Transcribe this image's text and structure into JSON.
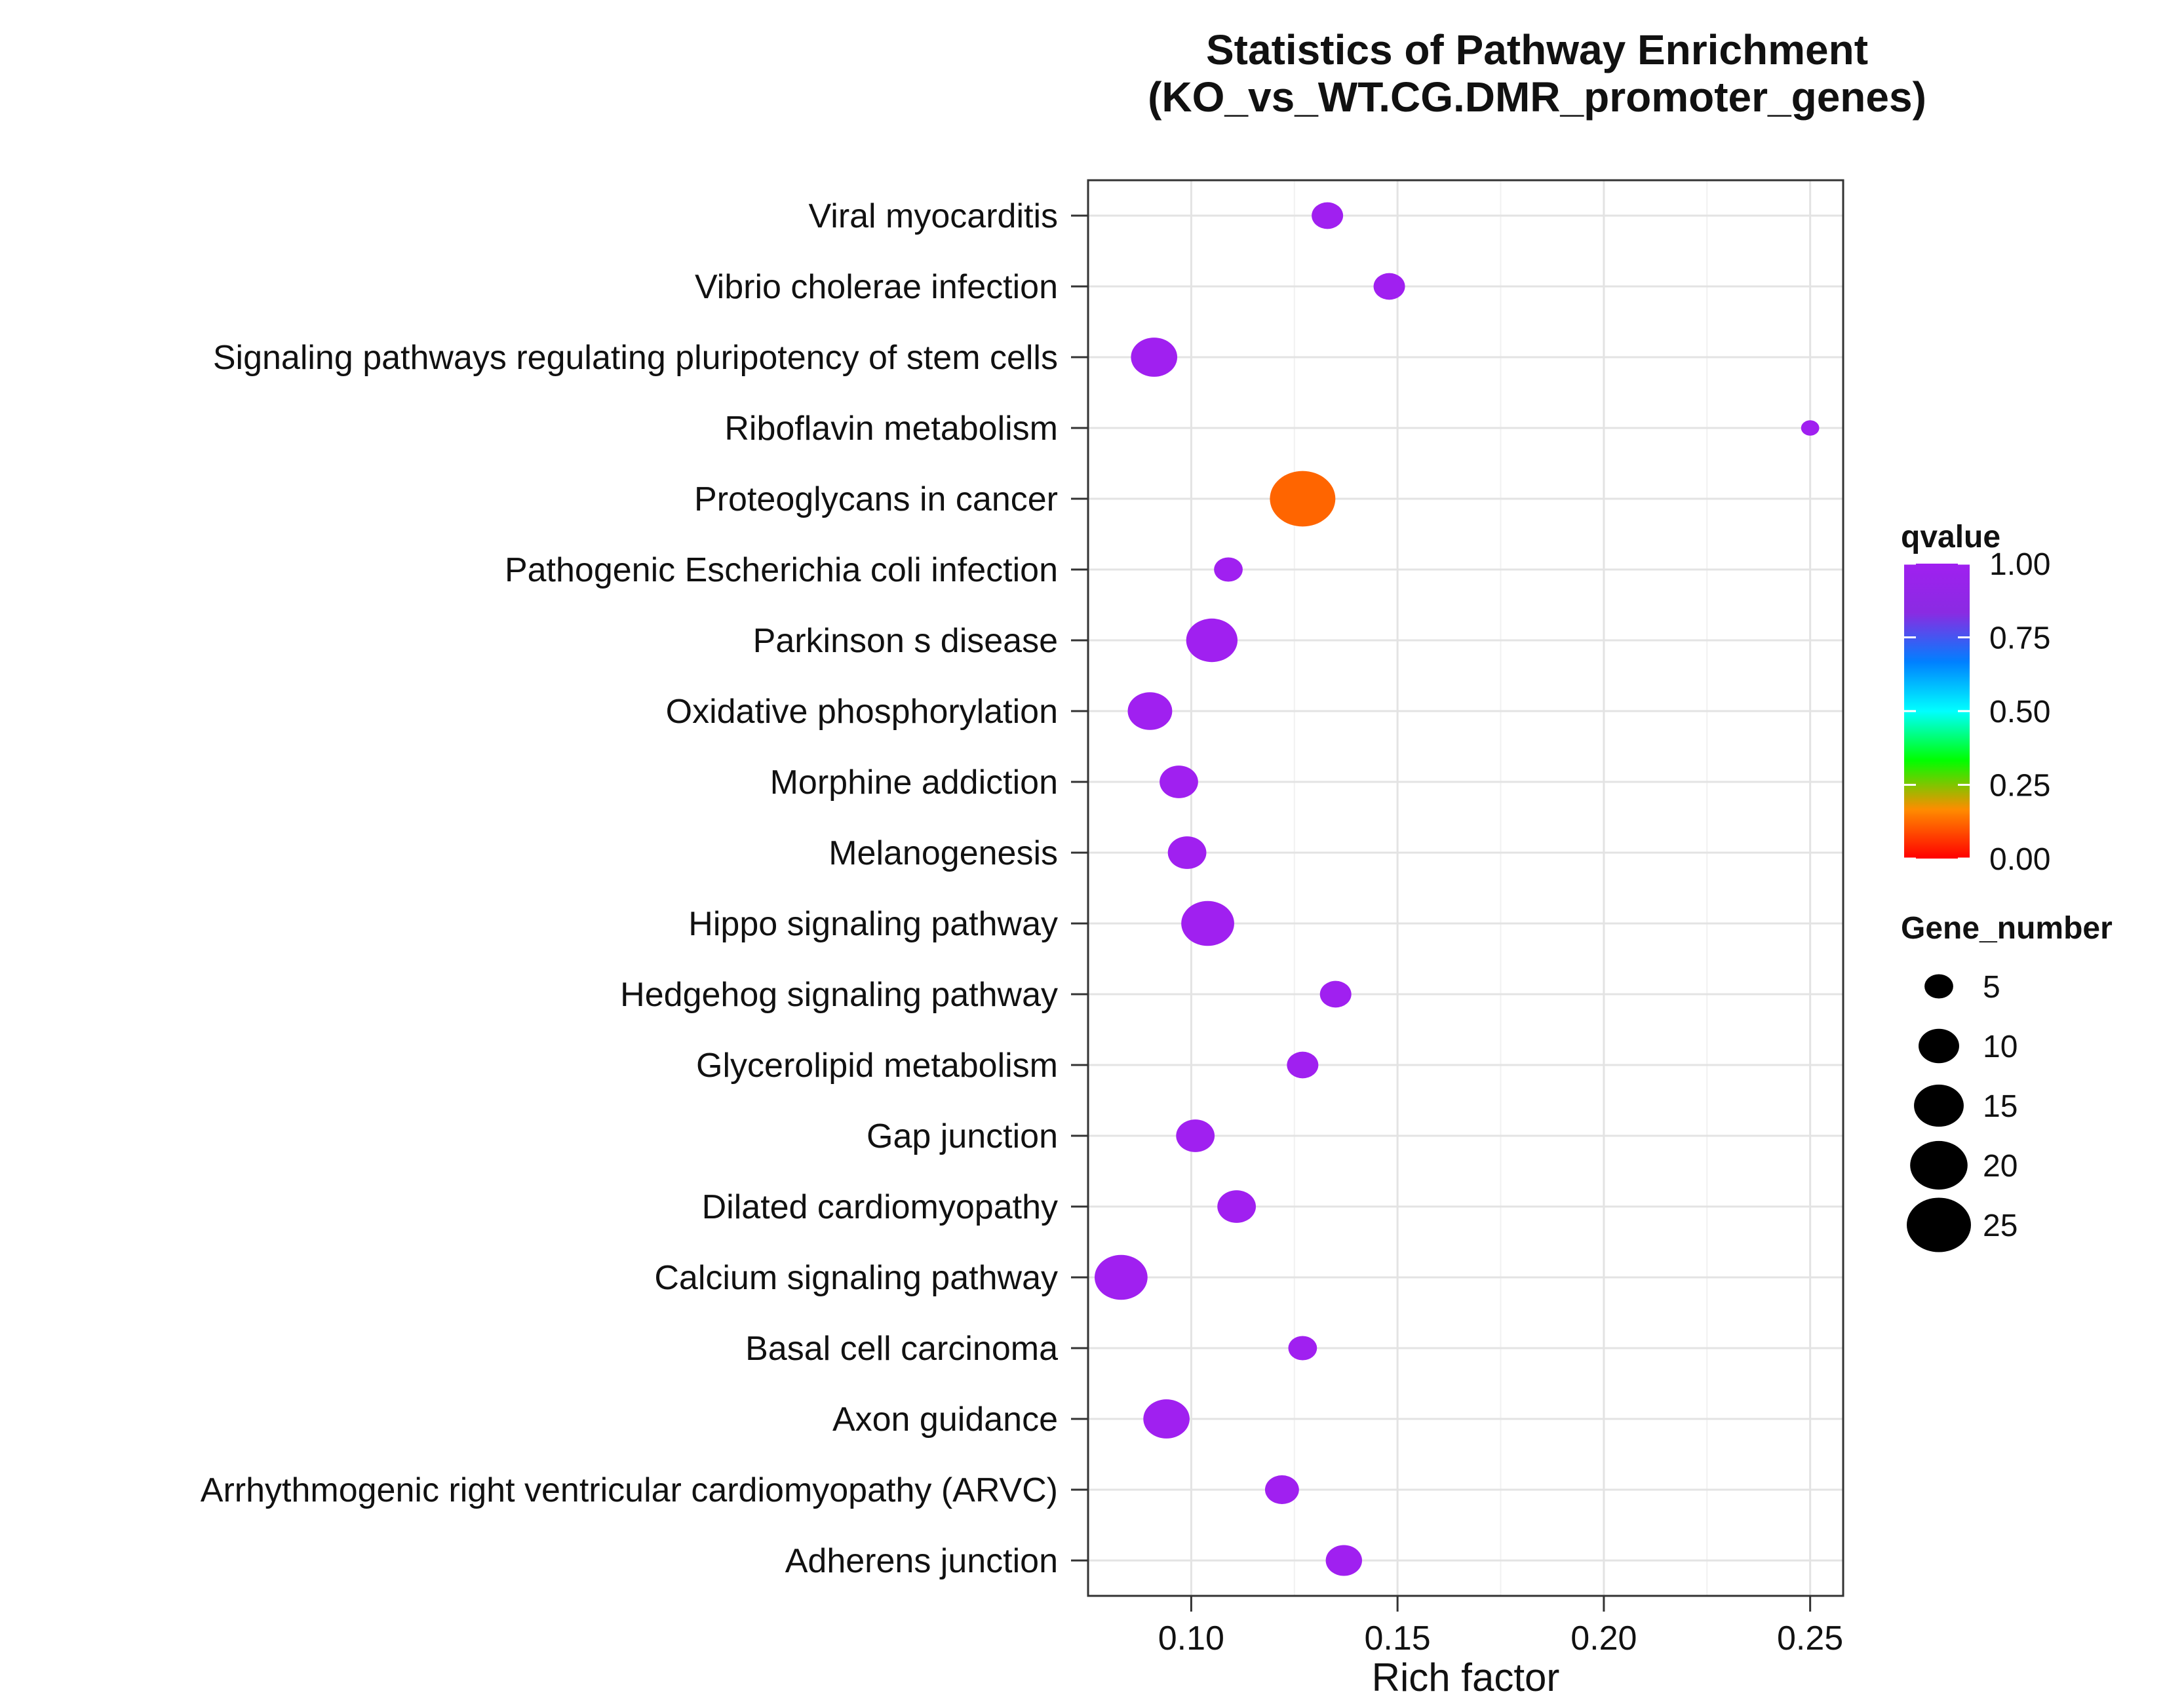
{
  "chart_data": {
    "type": "scatter",
    "title": "Statistics of Pathway Enrichment",
    "subtitle": "(KO_vs_WT.CG.DMR_promoter_genes)",
    "xlabel": "Rich factor",
    "ylabel": "",
    "xlim": [
      0.075,
      0.258
    ],
    "xticks": [
      0.1,
      0.15,
      0.2,
      0.25
    ],
    "xtick_labels": [
      "0.10",
      "0.15",
      "0.20",
      "0.25"
    ],
    "grid": true,
    "color_legend": {
      "title": "qvalue",
      "ticks": [
        1.0,
        0.75,
        0.5,
        0.25,
        0.0
      ],
      "tick_labels": [
        "1.00",
        "0.75",
        "0.50",
        "0.25",
        "0.00"
      ],
      "colors": [
        "#ff0000",
        "#ff8c00",
        "#00ff00",
        "#00ffff",
        "#0080ff",
        "#8a2be2",
        "#a020f0"
      ]
    },
    "size_legend": {
      "title": "Gene_number",
      "values": [
        5,
        10,
        15,
        20,
        25
      ],
      "labels": [
        "5",
        "10",
        "15",
        "20",
        "25"
      ]
    },
    "points": [
      {
        "pathway": "Viral myocarditis",
        "rich_factor": 0.133,
        "gene_number": 6,
        "qvalue": 1.0
      },
      {
        "pathway": "Vibrio cholerae infection",
        "rich_factor": 0.148,
        "gene_number": 6,
        "qvalue": 1.0
      },
      {
        "pathway": "Signaling pathways regulating pluripotency of stem cells",
        "rich_factor": 0.091,
        "gene_number": 13,
        "qvalue": 1.0
      },
      {
        "pathway": "Riboflavin metabolism",
        "rich_factor": 0.25,
        "gene_number": 2,
        "qvalue": 1.0
      },
      {
        "pathway": "Proteoglycans in cancer",
        "rich_factor": 0.127,
        "gene_number": 26,
        "qvalue": 0.12
      },
      {
        "pathway": "Pathogenic Escherichia coli infection",
        "rich_factor": 0.109,
        "gene_number": 5,
        "qvalue": 1.0
      },
      {
        "pathway": "Parkinson s disease",
        "rich_factor": 0.105,
        "gene_number": 16,
        "qvalue": 1.0
      },
      {
        "pathway": "Oxidative phosphorylation",
        "rich_factor": 0.09,
        "gene_number": 12,
        "qvalue": 1.0
      },
      {
        "pathway": "Morphine addiction",
        "rich_factor": 0.097,
        "gene_number": 9,
        "qvalue": 1.0
      },
      {
        "pathway": "Melanogenesis",
        "rich_factor": 0.099,
        "gene_number": 9,
        "qvalue": 1.0
      },
      {
        "pathway": "Hippo signaling pathway",
        "rich_factor": 0.104,
        "gene_number": 17,
        "qvalue": 1.0
      },
      {
        "pathway": "Hedgehog signaling pathway",
        "rich_factor": 0.135,
        "gene_number": 6,
        "qvalue": 1.0
      },
      {
        "pathway": "Glycerolipid metabolism",
        "rich_factor": 0.127,
        "gene_number": 6,
        "qvalue": 1.0
      },
      {
        "pathway": "Gap junction",
        "rich_factor": 0.101,
        "gene_number": 9,
        "qvalue": 1.0
      },
      {
        "pathway": "Dilated cardiomyopathy",
        "rich_factor": 0.111,
        "gene_number": 9,
        "qvalue": 1.0
      },
      {
        "pathway": "Calcium signaling pathway",
        "rich_factor": 0.083,
        "gene_number": 17,
        "qvalue": 1.0
      },
      {
        "pathway": "Basal cell carcinoma",
        "rich_factor": 0.127,
        "gene_number": 5,
        "qvalue": 1.0
      },
      {
        "pathway": "Axon guidance",
        "rich_factor": 0.094,
        "gene_number": 13,
        "qvalue": 1.0
      },
      {
        "pathway": "Arrhythmogenic right ventricular cardiomyopathy (ARVC)",
        "rich_factor": 0.122,
        "gene_number": 7,
        "qvalue": 1.0
      },
      {
        "pathway": "Adherens junction",
        "rich_factor": 0.137,
        "gene_number": 8,
        "qvalue": 1.0
      }
    ]
  }
}
